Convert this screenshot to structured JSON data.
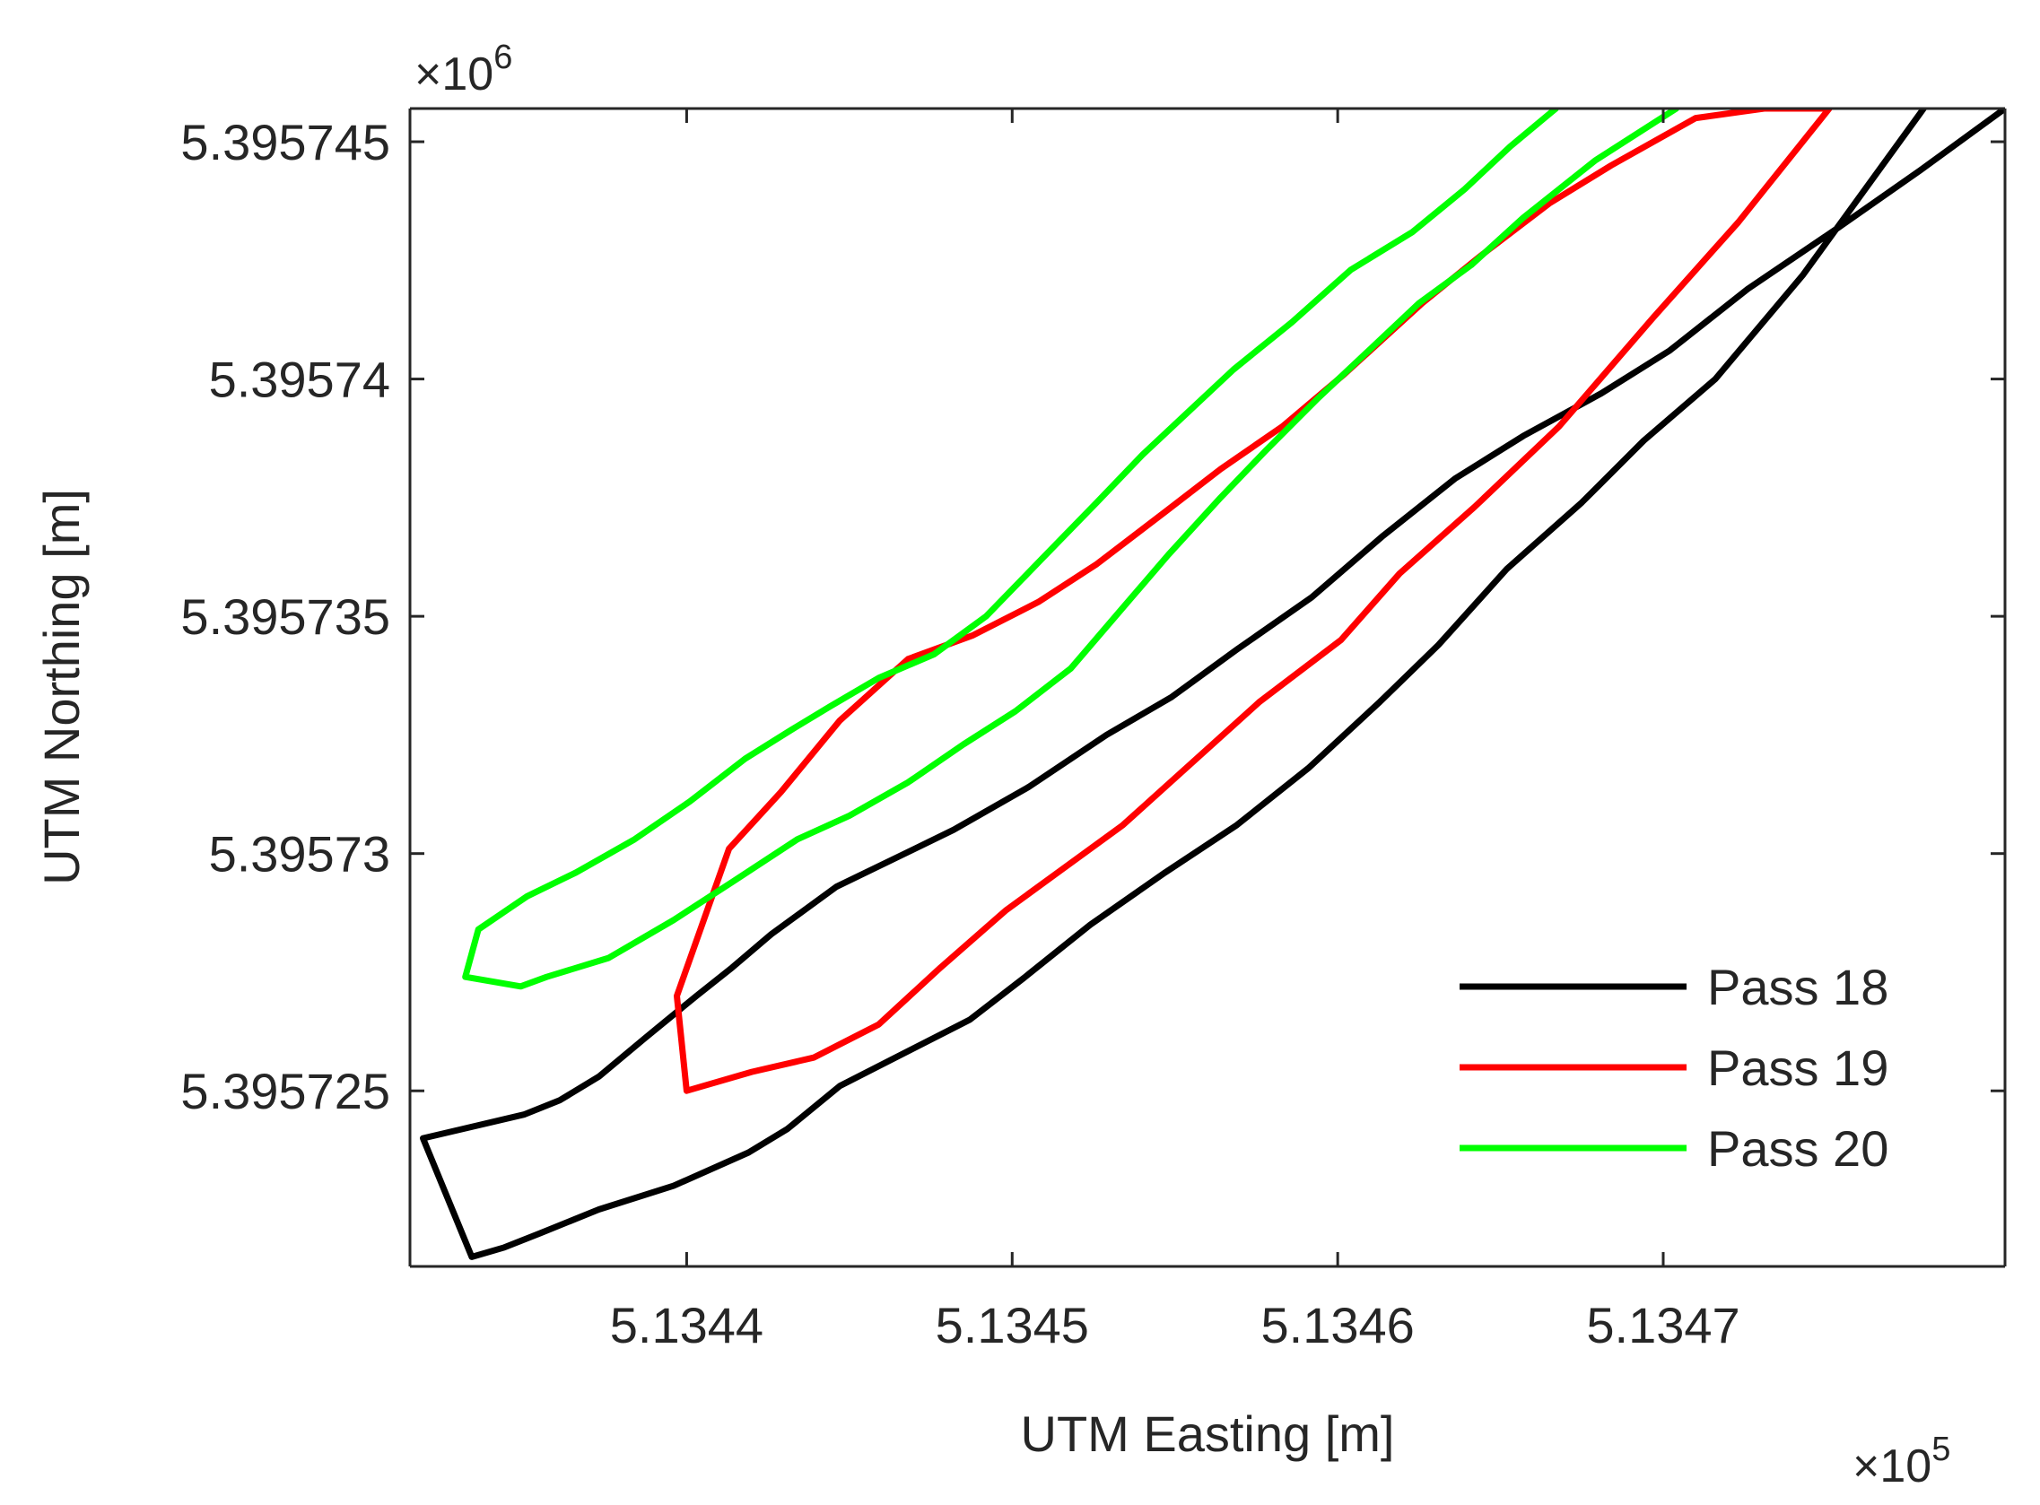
{
  "chart_data": {
    "type": "line",
    "xlabel": "UTM Easting [m]",
    "ylabel": "UTM Northing [m]",
    "x_exponent_label": "×10",
    "x_exponent_power": "5",
    "y_exponent_label": "×10",
    "y_exponent_power": "6",
    "xlim": [
      513431.5,
      513480.5
    ],
    "ylim": [
      5395721.3,
      5395745.7
    ],
    "x_ticks": [
      513440,
      513450,
      513460,
      513470
    ],
    "x_tick_labels": [
      "5.1344",
      "5.1345",
      "5.1346",
      "5.1347"
    ],
    "y_ticks": [
      5395725,
      5395730,
      5395735,
      5395740,
      5395745
    ],
    "y_tick_labels": [
      "5.395725",
      "5.39573",
      "5.395735",
      "5.39574",
      "5.395745"
    ],
    "grid": false,
    "legend_position": "bottom-right",
    "series": [
      {
        "name": "Pass 18",
        "color": "#000000",
        "x": [
          513478.0,
          513474.3,
          513471.6,
          513469.4,
          513467.5,
          513465.2,
          513463.1,
          513461.3,
          513459.1,
          513456.9,
          513454.7,
          513452.4,
          513450.4,
          513448.7,
          513446.7,
          513444.7,
          513443.1,
          513441.9,
          513439.6,
          513437.3,
          513435.5,
          513434.4,
          513433.4,
          513431.9,
          513435.0,
          513436.1,
          513437.3,
          513438.7,
          513440.3,
          513441.4,
          513442.6,
          513444.6,
          513446.4,
          513448.2,
          513450.5,
          513452.9,
          513454.9,
          513456.9,
          513459.2,
          513461.4,
          513463.6,
          513465.7,
          513468.1,
          513470.2,
          513472.6,
          513475.4,
          513477.9,
          513480.5
        ],
        "y": [
          5395745.7,
          5395742.2,
          5395740.0,
          5395738.7,
          5395737.4,
          5395736.0,
          5395734.4,
          5395733.2,
          5395731.8,
          5395730.6,
          5395729.6,
          5395728.5,
          5395727.4,
          5395726.5,
          5395725.8,
          5395725.1,
          5395724.2,
          5395723.7,
          5395723.0,
          5395722.5,
          5395722.0,
          5395721.7,
          5395721.5,
          5395724.0,
          5395724.5,
          5395724.8,
          5395725.3,
          5395726.1,
          5395727.0,
          5395727.6,
          5395728.3,
          5395729.3,
          5395729.9,
          5395730.5,
          5395731.4,
          5395732.5,
          5395733.3,
          5395734.3,
          5395735.4,
          5395736.7,
          5395737.9,
          5395738.8,
          5395739.7,
          5395740.6,
          5395741.9,
          5395743.2,
          5395744.4,
          5395745.7
        ]
      },
      {
        "name": "Pass 19",
        "color": "#ff0000",
        "x": [
          513475.1,
          513472.3,
          513469.7,
          513466.8,
          513464.2,
          513461.9,
          513460.1,
          513457.6,
          513455.5,
          513453.4,
          513451.4,
          513449.8,
          513447.8,
          513445.9,
          513443.9,
          513442.0,
          513440.0,
          513439.7,
          513441.3,
          513442.9,
          513444.7,
          513446.8,
          513448.8,
          513450.8,
          513452.6,
          513454.7,
          513456.4,
          513458.3,
          513460.2,
          513462.6,
          513464.4,
          513466.5,
          513468.4,
          513471.0,
          513473.1,
          513475.1
        ],
        "y": [
          5395745.7,
          5395743.3,
          5395741.3,
          5395739.0,
          5395737.3,
          5395735.9,
          5395734.5,
          5395733.2,
          5395731.9,
          5395730.6,
          5395729.6,
          5395728.8,
          5395727.6,
          5395726.4,
          5395725.7,
          5395725.4,
          5395725.0,
          5395727.0,
          5395730.1,
          5395731.3,
          5395732.8,
          5395734.1,
          5395734.6,
          5395735.3,
          5395736.1,
          5395737.2,
          5395738.1,
          5395739.0,
          5395740.1,
          5395741.6,
          5395742.6,
          5395743.7,
          5395744.5,
          5395745.5,
          5395745.7,
          5395745.7
        ],
        "note_unused": ""
      },
      {
        "name": "Pass 20",
        "color": "#00ff00",
        "x": [
          513470.4,
          513467.9,
          513465.7,
          513464.1,
          513462.5,
          513460.8,
          513459.4,
          513457.8,
          513456.4,
          513454.8,
          513453.3,
          513451.8,
          513450.1,
          513448.5,
          513446.8,
          513445.0,
          513443.4,
          513441.4,
          513439.6,
          513437.6,
          513435.7,
          513434.9,
          513433.2,
          513433.6,
          513435.1,
          513436.6,
          513438.4,
          513440.1,
          513441.8,
          513443.2,
          513444.4,
          513445.9,
          513447.6,
          513449.2,
          513450.9,
          513452.6,
          513454.0,
          513455.4,
          513456.8,
          513458.6,
          513460.4,
          513462.3,
          513463.9,
          513465.3,
          513466.7
        ],
        "y": [
          5395745.7,
          5395744.6,
          5395743.4,
          5395742.4,
          5395741.6,
          5395740.5,
          5395739.6,
          5395738.5,
          5395737.5,
          5395736.3,
          5395735.1,
          5395733.9,
          5395733.0,
          5395732.3,
          5395731.5,
          5395730.8,
          5395730.3,
          5395729.4,
          5395728.6,
          5395727.8,
          5395727.4,
          5395727.2,
          5395727.4,
          5395728.4,
          5395729.1,
          5395729.6,
          5395730.3,
          5395731.1,
          5395732.0,
          5395732.6,
          5395733.1,
          5395733.7,
          5395734.2,
          5395735.0,
          5395736.2,
          5395737.4,
          5395738.4,
          5395739.3,
          5395740.2,
          5395741.2,
          5395742.3,
          5395743.1,
          5395744.0,
          5395744.9,
          5395745.7
        ]
      }
    ]
  }
}
